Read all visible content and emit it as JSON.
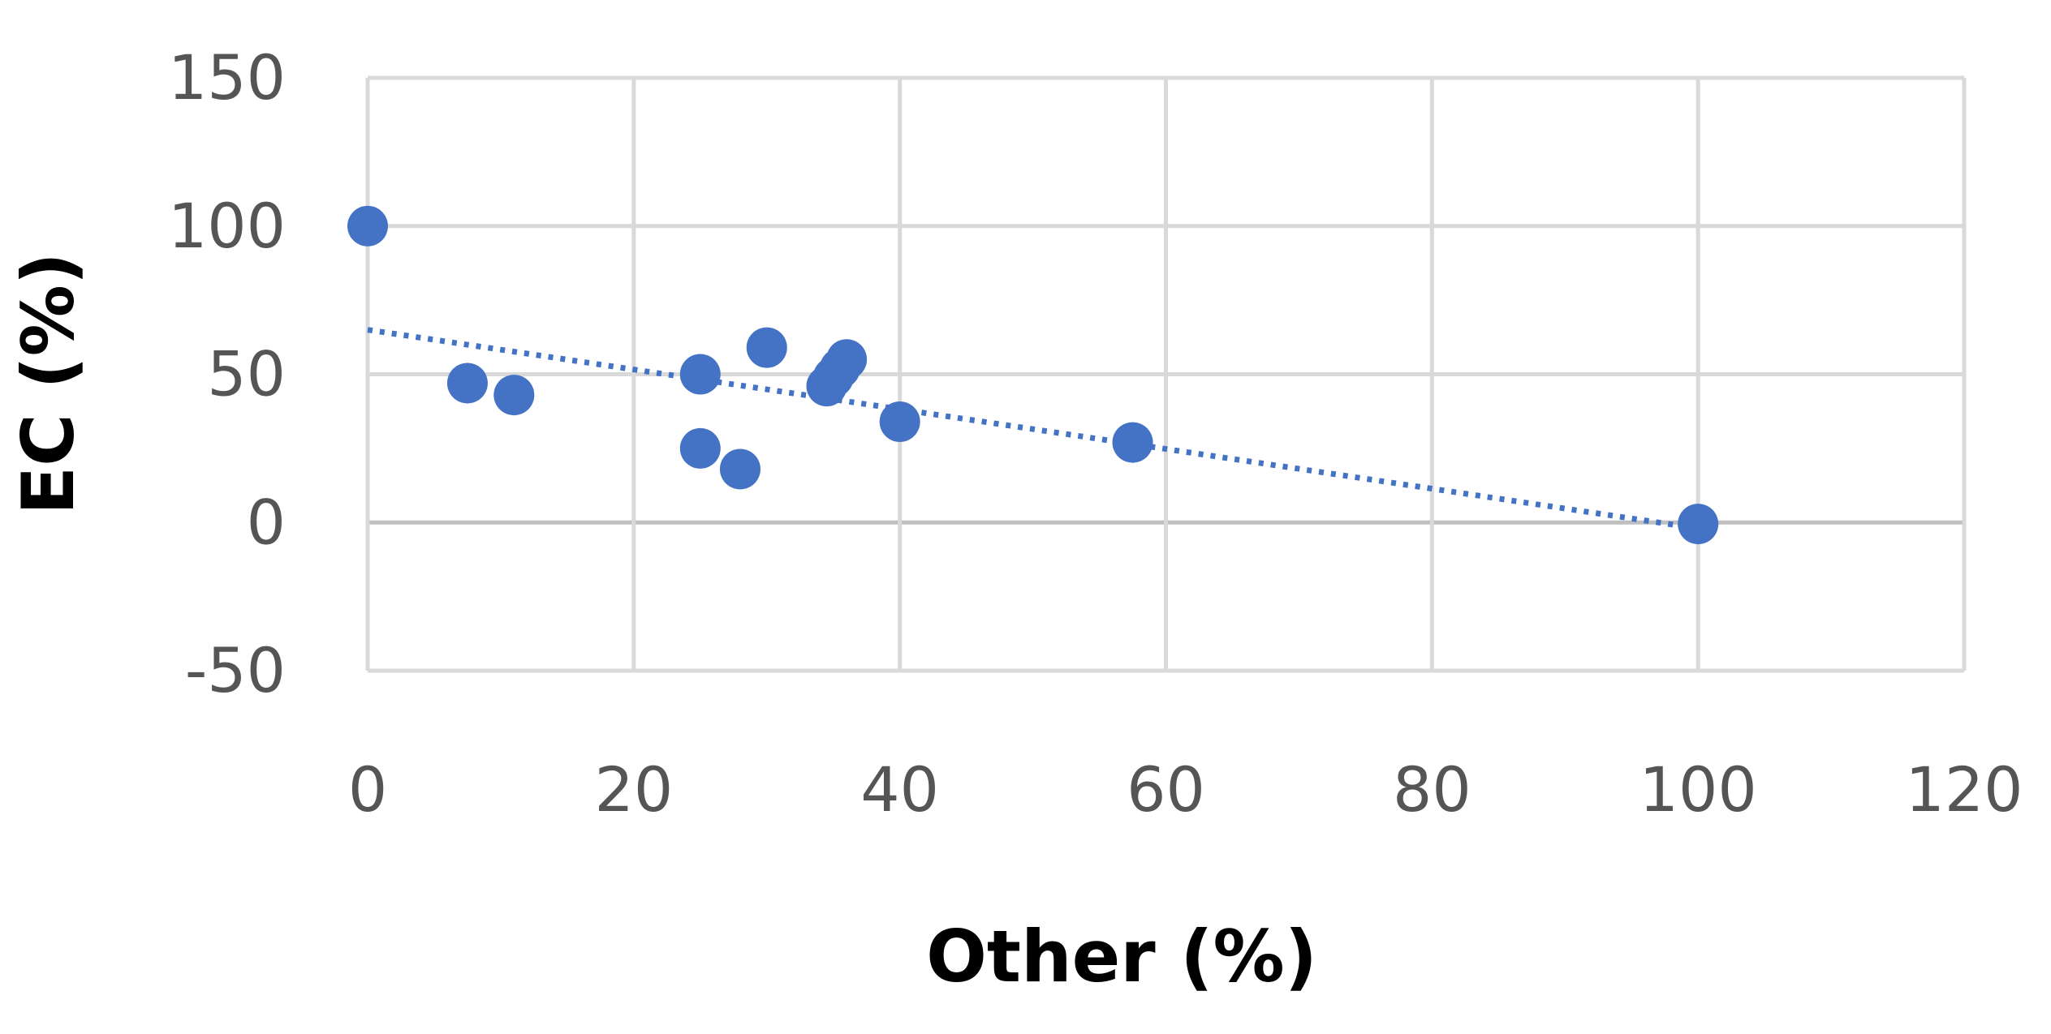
{
  "chart_data": {
    "type": "scatter",
    "xlabel": "Other (%)",
    "ylabel": "EC (%)",
    "xlim": [
      0,
      120
    ],
    "ylim": [
      -50,
      150
    ],
    "x_ticks": [
      "0",
      "20",
      "40",
      "60",
      "80",
      "100",
      "120"
    ],
    "y_ticks": [
      "150",
      "100",
      "50",
      "0",
      "-50"
    ],
    "grid": true,
    "legend": "none",
    "series": [
      {
        "x": [
          0,
          7.5,
          11,
          25,
          25,
          28,
          30,
          34.5,
          35,
          35.5,
          36,
          40,
          57.5,
          100
        ],
        "y": [
          100,
          47,
          43,
          50,
          25,
          18,
          59,
          46,
          49,
          52,
          55,
          34,
          27,
          -0.5
        ],
        "color": "#4472C4"
      }
    ],
    "trendline": {
      "type": "linear",
      "style": "dotted",
      "color": "#4472C4",
      "x": [
        0,
        100
      ],
      "y": [
        65,
        -2
      ]
    }
  }
}
